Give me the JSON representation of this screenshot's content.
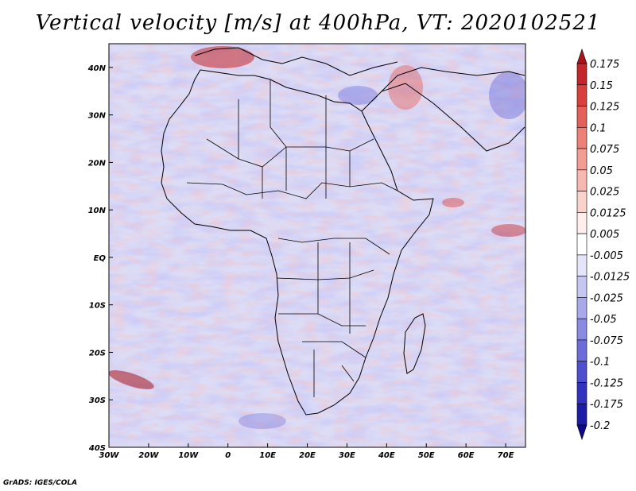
{
  "title": "Vertical velocity [m/s] at 400hPa, VT: 2020102521",
  "footer": "GrADS: IGES/COLA",
  "chart_data": {
    "type": "heatmap",
    "title": "Vertical velocity [m/s] at 400hPa, VT: 2020102521",
    "variable": "Vertical velocity",
    "units": "m/s",
    "level": "400hPa",
    "valid_time": "2020102521",
    "xlim": [
      -30,
      75
    ],
    "ylim": [
      -40,
      45
    ],
    "x_ticks": [
      "30W",
      "20W",
      "10W",
      "0",
      "10E",
      "20E",
      "30E",
      "40E",
      "50E",
      "60E",
      "70E"
    ],
    "y_ticks": [
      "40S",
      "30S",
      "20S",
      "10S",
      "EQ",
      "10N",
      "20N",
      "30N",
      "40N"
    ],
    "colorbar": {
      "orientation": "vertical",
      "labels": [
        "0.175",
        "0.15",
        "0.125",
        "0.1",
        "0.075",
        "0.05",
        "0.025",
        "0.0125",
        "0.005",
        "-0.005",
        "-0.0125",
        "-0.025",
        "-0.05",
        "-0.075",
        "-0.1",
        "-0.125",
        "-0.175",
        "-0.2"
      ],
      "colors": [
        "#a8141c",
        "#c4262a",
        "#d8403c",
        "#e4605a",
        "#ee8078",
        "#f29c94",
        "#f6b8b0",
        "#fad2cc",
        "#ffeeec",
        "#ffffff",
        "#e4e4fa",
        "#c6c6f2",
        "#a8a8ea",
        "#8a8ae2",
        "#6c6cda",
        "#4e4ed0",
        "#3232be",
        "#1c1ca4",
        "#100a8a"
      ]
    }
  }
}
